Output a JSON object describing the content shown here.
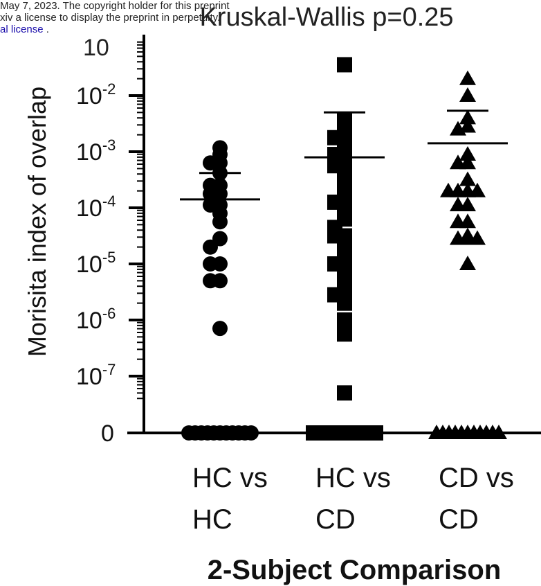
{
  "banner": {
    "line1": "May 7, 2023. The copyright holder for this preprint",
    "line2": "xiv a license to display the preprint in perpetuity.",
    "line3_link": "al license",
    "line3_tail": " ."
  },
  "chart_data": {
    "type": "scatter",
    "title": "Kruskal-Wallis p=0.25",
    "ylabel": "Morisita index of overlap",
    "xlabel": "2-Subject Comparison",
    "y_scale": "log (with zero break)",
    "ylim_log10": [
      -7.5,
      -1
    ],
    "categories": [
      "HC vs HC",
      "HC vs CD",
      "CD vs CD"
    ],
    "category_lines": [
      [
        "HC vs",
        "HC"
      ],
      [
        "HC vs",
        "CD"
      ],
      [
        "CD vs",
        "CD"
      ]
    ],
    "y_tick_labels": [
      {
        "base": "10",
        "exp": "-2",
        "log10": -2
      },
      {
        "base": "10",
        "exp": "-3",
        "log10": -3
      },
      {
        "base": "10",
        "exp": "-4",
        "log10": -4
      },
      {
        "base": "10",
        "exp": "-5",
        "log10": -5
      },
      {
        "base": "10",
        "exp": "-6",
        "log10": -6
      },
      {
        "base": "10",
        "exp": "-7",
        "log10": -7
      }
    ],
    "zero_label": "0",
    "top_tick_partial": "10",
    "series": [
      {
        "category": "HC vs HC",
        "marker": "circle",
        "mean_log10": -3.85,
        "sem_upper_log10": -3.38,
        "points_log10": [
          -2.93,
          -3.05,
          -3.2,
          -3.2,
          -3.38,
          -3.6,
          -3.6,
          -3.75,
          -3.75,
          -3.95,
          -3.95,
          -4.1,
          -4.25,
          -4.55,
          -4.7,
          -5.0,
          -5.0,
          -5.3,
          -5.3,
          -6.15
        ],
        "zero_count": 11
      },
      {
        "category": "HC vs CD",
        "marker": "square",
        "mean_log10": -3.1,
        "sem_upper_log10": -2.3,
        "points_log10": [
          -1.45,
          -2.45,
          -2.6,
          -2.75,
          -2.75,
          -2.9,
          -3.05,
          -3.05,
          -3.25,
          -3.25,
          -3.45,
          -3.6,
          -3.75,
          -3.9,
          -3.9,
          -4.05,
          -4.2,
          -4.35,
          -4.5,
          -4.5,
          -4.65,
          -4.8,
          -5.0,
          -5.0,
          -5.2,
          -5.45,
          -5.55,
          -5.7,
          -6.0,
          -6.25,
          -7.3
        ],
        "zero_count": 11
      },
      {
        "category": "CD vs CD",
        "marker": "triangle",
        "mean_log10": -2.85,
        "sem_upper_log10": -2.27,
        "points_log10": [
          -1.7,
          -2.0,
          -2.4,
          -2.55,
          -2.6,
          -3.05,
          -3.2,
          -3.2,
          -3.5,
          -3.7,
          -3.7,
          -3.7,
          -3.7,
          -3.95,
          -3.95,
          -4.25,
          -4.25,
          -4.5,
          -4.55,
          -4.55,
          -4.55,
          -5.0
        ],
        "zero_count": 11
      }
    ]
  }
}
